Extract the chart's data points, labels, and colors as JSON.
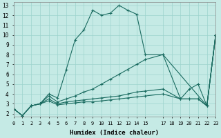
{
  "xlabel": "Humidex (Indice chaleur)",
  "background_color": "#c5eae5",
  "grid_color": "#9dd4ce",
  "line_color": "#1a6b60",
  "xlim": [
    0,
    23
  ],
  "ylim": [
    1.7,
    13.3
  ],
  "series": [
    {
      "x": [
        0,
        1,
        2,
        3,
        4,
        5,
        6,
        7,
        8,
        9,
        10,
        11,
        12,
        13,
        14,
        15,
        17,
        22,
        23
      ],
      "y": [
        2.5,
        1.8,
        2.8,
        3.0,
        4.0,
        3.6,
        6.5,
        9.5,
        10.5,
        12.5,
        12.0,
        12.2,
        13.0,
        12.5,
        12.1,
        8.0,
        8.0,
        2.8,
        10.0
      ]
    },
    {
      "x": [
        0,
        1,
        2,
        3,
        4,
        5,
        6,
        7,
        8,
        9,
        10,
        11,
        12,
        13,
        14,
        15,
        17,
        19,
        20,
        21,
        22,
        23
      ],
      "y": [
        2.5,
        1.8,
        2.8,
        3.0,
        3.8,
        3.2,
        3.5,
        3.8,
        4.2,
        4.5,
        5.0,
        5.5,
        6.0,
        6.5,
        7.0,
        7.5,
        8.0,
        3.5,
        4.5,
        5.0,
        2.8,
        10.0
      ]
    },
    {
      "x": [
        0,
        1,
        2,
        3,
        4,
        5,
        6,
        7,
        8,
        9,
        10,
        11,
        12,
        13,
        14,
        15,
        17,
        19,
        20,
        21,
        22,
        23
      ],
      "y": [
        2.5,
        1.8,
        2.8,
        3.0,
        3.5,
        3.0,
        3.2,
        3.3,
        3.4,
        3.5,
        3.6,
        3.7,
        3.8,
        4.0,
        4.2,
        4.3,
        4.5,
        3.5,
        3.5,
        3.5,
        2.8,
        10.0
      ]
    },
    {
      "x": [
        0,
        1,
        2,
        3,
        4,
        5,
        6,
        7,
        8,
        9,
        10,
        11,
        12,
        13,
        14,
        15,
        17,
        19,
        20,
        21,
        22,
        23
      ],
      "y": [
        2.5,
        1.8,
        2.8,
        3.0,
        3.3,
        2.9,
        3.0,
        3.1,
        3.2,
        3.2,
        3.3,
        3.4,
        3.5,
        3.6,
        3.7,
        3.8,
        4.0,
        3.5,
        3.5,
        3.5,
        2.8,
        10.0
      ]
    }
  ],
  "xtick_positions": [
    0,
    1,
    2,
    3,
    4,
    5,
    6,
    7,
    8,
    9,
    10,
    11,
    12,
    13,
    14,
    15,
    17,
    18,
    19,
    20,
    21,
    22,
    23
  ],
  "xtick_labels": [
    "0",
    "1",
    "2",
    "3",
    "4",
    "5",
    "6",
    "7",
    "8",
    "9",
    "10",
    "11",
    "12",
    "13",
    "14",
    "15",
    "17",
    "18",
    "19",
    "20",
    "21",
    "22",
    "23"
  ],
  "ytick_positions": [
    2,
    3,
    4,
    5,
    6,
    7,
    8,
    9,
    10,
    11,
    12,
    13
  ],
  "ytick_labels": [
    "2",
    "3",
    "4",
    "5",
    "6",
    "7",
    "8",
    "9",
    "10",
    "11",
    "12",
    "13"
  ]
}
